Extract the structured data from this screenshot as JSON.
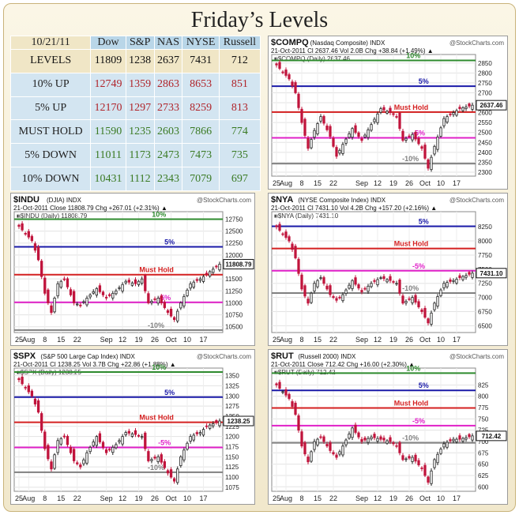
{
  "page_title": "Friday’s Levels",
  "levels_table": {
    "header": [
      "10/21/11",
      "Dow",
      "S&P",
      "NAS",
      "NYSE",
      "Russell"
    ],
    "rows": [
      {
        "label": "LEVELS",
        "values": [
          "11809",
          "1238",
          "2637",
          "7431",
          "712"
        ],
        "color": "#111111"
      },
      {
        "label": "10% UP",
        "values": [
          "12749",
          "1359",
          "2863",
          "8653",
          "851"
        ],
        "color": "#b0242a"
      },
      {
        "label": "5% UP",
        "values": [
          "12170",
          "1297",
          "2733",
          "8259",
          "813"
        ],
        "color": "#b0242a"
      },
      {
        "label": "MUST HOLD",
        "values": [
          "11590",
          "1235",
          "2603",
          "7866",
          "774"
        ],
        "color": "#3a7a23"
      },
      {
        "label": "5% DOWN",
        "values": [
          "11011",
          "1173",
          "2473",
          "7473",
          "735"
        ],
        "color": "#3a7a23"
      },
      {
        "label": "10% DOWN",
        "values": [
          "10431",
          "1112",
          "2343",
          "7079",
          "697"
        ],
        "color": "#3a7a23"
      }
    ]
  },
  "colors": {
    "up_candle": "#222222",
    "down_candle": "#c0143c",
    "line_10pct": "#2e8b2e",
    "line_5pct": "#1a1aa8",
    "line_musthold": "#d42020",
    "line_minus5": "#e020c8",
    "line_minus10": "#808080"
  },
  "chart_data": [
    {
      "type": "candlestick",
      "symbol": "$COMPQ",
      "name": "(Nasdaq Composite) INDX",
      "watermark": "@StockCharts.com",
      "info": "21-Oct-2011   Cl 2637.46  Vol 2.0B  Chg +38.84 (+1.49%) ▲",
      "legend": "■$COMPQ (Daily) 2637.46",
      "last_label": "2637.46",
      "ylim": [
        2280,
        2865
      ],
      "yticks": [
        2300,
        2350,
        2400,
        2450,
        2500,
        2550,
        2600,
        2650,
        2700,
        2750,
        2800,
        2850
      ],
      "xticks": [
        {
          "i": 0,
          "label": "25"
        },
        {
          "i": 3,
          "label": "Aug"
        },
        {
          "i": 8,
          "label": "8"
        },
        {
          "i": 13,
          "label": "15"
        },
        {
          "i": 18,
          "label": "22"
        },
        {
          "i": 27,
          "label": "Sep"
        },
        {
          "i": 32,
          "label": "12"
        },
        {
          "i": 37,
          "label": "19"
        },
        {
          "i": 42,
          "label": "26"
        },
        {
          "i": 47,
          "label": "Oct"
        },
        {
          "i": 52,
          "label": "10"
        },
        {
          "i": 57,
          "label": "17"
        }
      ],
      "n_days": 63,
      "anchors": [
        [
          0,
          2840
        ],
        [
          4,
          2770
        ],
        [
          6,
          2700
        ],
        [
          8,
          2550
        ],
        [
          10,
          2420
        ],
        [
          12,
          2510
        ],
        [
          14,
          2580
        ],
        [
          17,
          2480
        ],
        [
          19,
          2380
        ],
        [
          21,
          2440
        ],
        [
          24,
          2520
        ],
        [
          27,
          2460
        ],
        [
          30,
          2540
        ],
        [
          33,
          2620
        ],
        [
          36,
          2600
        ],
        [
          38,
          2580
        ],
        [
          40,
          2460
        ],
        [
          43,
          2490
        ],
        [
          46,
          2420
        ],
        [
          48,
          2320
        ],
        [
          50,
          2430
        ],
        [
          53,
          2570
        ],
        [
          56,
          2600
        ],
        [
          58,
          2620
        ],
        [
          62,
          2637.46
        ]
      ],
      "levels": [
        {
          "label": "10%",
          "value": 2863,
          "role": "up10"
        },
        {
          "label": "5%",
          "value": 2733,
          "role": "up5"
        },
        {
          "label": "Must Hold",
          "value": 2603,
          "role": "hold"
        },
        {
          "label": "-5%",
          "value": 2473,
          "role": "down5"
        },
        {
          "label": "-10%",
          "value": 2343,
          "role": "down10"
        }
      ]
    },
    {
      "type": "candlestick",
      "symbol": "$INDU",
      "name": "(DJIA) INDX",
      "watermark": "@StockCharts.com",
      "info": "21-Oct-2011        Close 11808.79  Chg +267.01 (+2.31%) ▲",
      "legend": "■$INDU (Daily) 11808.79",
      "last_label": "11808.79",
      "ylim": [
        10380,
        12790
      ],
      "yticks": [
        10500,
        10750,
        11000,
        11250,
        11500,
        11750,
        12000,
        12250,
        12500,
        12750
      ],
      "xticks": [
        {
          "i": 0,
          "label": "25"
        },
        {
          "i": 3,
          "label": "Aug"
        },
        {
          "i": 8,
          "label": "8"
        },
        {
          "i": 13,
          "label": "15"
        },
        {
          "i": 18,
          "label": "22"
        },
        {
          "i": 27,
          "label": "Sep"
        },
        {
          "i": 32,
          "label": "12"
        },
        {
          "i": 37,
          "label": "19"
        },
        {
          "i": 42,
          "label": "26"
        },
        {
          "i": 47,
          "label": "Oct"
        },
        {
          "i": 52,
          "label": "10"
        },
        {
          "i": 57,
          "label": "17"
        }
      ],
      "n_days": 63,
      "anchors": [
        [
          0,
          12600
        ],
        [
          4,
          12300
        ],
        [
          6,
          11900
        ],
        [
          8,
          11200
        ],
        [
          10,
          10800
        ],
        [
          12,
          11400
        ],
        [
          14,
          11500
        ],
        [
          17,
          11000
        ],
        [
          19,
          10950
        ],
        [
          21,
          11100
        ],
        [
          24,
          11300
        ],
        [
          27,
          11100
        ],
        [
          30,
          11250
        ],
        [
          33,
          11450
        ],
        [
          36,
          11400
        ],
        [
          38,
          11500
        ],
        [
          40,
          11000
        ],
        [
          43,
          11100
        ],
        [
          46,
          10800
        ],
        [
          48,
          10650
        ],
        [
          50,
          11000
        ],
        [
          53,
          11400
        ],
        [
          56,
          11500
        ],
        [
          58,
          11600
        ],
        [
          62,
          11808.79
        ]
      ],
      "levels": [
        {
          "label": "10%",
          "value": 12749,
          "role": "up10"
        },
        {
          "label": "5%",
          "value": 12170,
          "role": "up5"
        },
        {
          "label": "Must Hold",
          "value": 11590,
          "role": "hold"
        },
        {
          "label": "-5%",
          "value": 11011,
          "role": "down5"
        },
        {
          "label": "-10%",
          "value": 10431,
          "role": "down10"
        }
      ]
    },
    {
      "type": "candlestick",
      "symbol": "$NYA",
      "name": "(NYSE Composite Index) INDX",
      "watermark": "@StockCharts.com",
      "info": "21-Oct-2011   Cl 7431.10  Vol 4.2B  Chg +157.20 (+2.16%) ▲",
      "legend": "■$NYA (Daily) 7431.10",
      "last_label": "7431.10",
      "ylim": [
        6380,
        8420
      ],
      "yticks": [
        6500,
        6750,
        7000,
        7250,
        7500,
        7750,
        8000,
        8250
      ],
      "xticks": [
        {
          "i": 0,
          "label": "25"
        },
        {
          "i": 3,
          "label": "Aug"
        },
        {
          "i": 8,
          "label": "8"
        },
        {
          "i": 13,
          "label": "15"
        },
        {
          "i": 18,
          "label": "22"
        },
        {
          "i": 27,
          "label": "Sep"
        },
        {
          "i": 32,
          "label": "12"
        },
        {
          "i": 37,
          "label": "19"
        },
        {
          "i": 42,
          "label": "26"
        },
        {
          "i": 47,
          "label": "Oct"
        },
        {
          "i": 52,
          "label": "10"
        },
        {
          "i": 57,
          "label": "17"
        }
      ],
      "n_days": 63,
      "anchors": [
        [
          0,
          8250
        ],
        [
          4,
          8000
        ],
        [
          6,
          7700
        ],
        [
          8,
          7150
        ],
        [
          10,
          6900
        ],
        [
          12,
          7250
        ],
        [
          14,
          7350
        ],
        [
          17,
          7050
        ],
        [
          19,
          6950
        ],
        [
          21,
          7050
        ],
        [
          24,
          7300
        ],
        [
          27,
          7100
        ],
        [
          30,
          7250
        ],
        [
          33,
          7350
        ],
        [
          36,
          7300
        ],
        [
          38,
          7250
        ],
        [
          40,
          6900
        ],
        [
          43,
          7000
        ],
        [
          46,
          6750
        ],
        [
          48,
          6550
        ],
        [
          50,
          6900
        ],
        [
          53,
          7250
        ],
        [
          56,
          7300
        ],
        [
          58,
          7350
        ],
        [
          62,
          7431.1
        ]
      ],
      "levels": [
        {
          "label": "5%",
          "value": 8259,
          "role": "up5"
        },
        {
          "label": "Must Hold",
          "value": 7866,
          "role": "hold"
        },
        {
          "label": "-5%",
          "value": 7473,
          "role": "down5"
        },
        {
          "label": "-10%",
          "value": 7079,
          "role": "down10"
        }
      ]
    },
    {
      "type": "candlestick",
      "symbol": "$SPX",
      "name": "(S&P 500 Large Cap Index) INDX",
      "watermark": "@StockCharts.com",
      "info": "21-Oct-2011   Cl 1238.25  Vol 3.7B  Chg +22.86 (+1.88%) ▲",
      "legend": "■$SPX (Daily) 1238.25",
      "last_label": "1238.25",
      "ylim": [
        1065,
        1355
      ],
      "yticks": [
        1075,
        1100,
        1125,
        1150,
        1175,
        1200,
        1225,
        1250,
        1275,
        1300,
        1325,
        1350
      ],
      "xticks": [
        {
          "i": 0,
          "label": "25"
        },
        {
          "i": 3,
          "label": "Aug"
        },
        {
          "i": 8,
          "label": "8"
        },
        {
          "i": 13,
          "label": "15"
        },
        {
          "i": 18,
          "label": "22"
        },
        {
          "i": 27,
          "label": "Sep"
        },
        {
          "i": 32,
          "label": "12"
        },
        {
          "i": 37,
          "label": "19"
        },
        {
          "i": 42,
          "label": "26"
        },
        {
          "i": 47,
          "label": "Oct"
        },
        {
          "i": 52,
          "label": "10"
        },
        {
          "i": 57,
          "label": "17"
        }
      ],
      "n_days": 63,
      "anchors": [
        [
          0,
          1340
        ],
        [
          4,
          1300
        ],
        [
          6,
          1260
        ],
        [
          8,
          1170
        ],
        [
          10,
          1120
        ],
        [
          12,
          1190
        ],
        [
          14,
          1200
        ],
        [
          17,
          1140
        ],
        [
          19,
          1125
        ],
        [
          21,
          1160
        ],
        [
          24,
          1200
        ],
        [
          27,
          1160
        ],
        [
          30,
          1180
        ],
        [
          33,
          1210
        ],
        [
          36,
          1205
        ],
        [
          38,
          1200
        ],
        [
          40,
          1140
        ],
        [
          43,
          1150
        ],
        [
          46,
          1110
        ],
        [
          48,
          1090
        ],
        [
          50,
          1150
        ],
        [
          53,
          1200
        ],
        [
          56,
          1210
        ],
        [
          58,
          1225
        ],
        [
          62,
          1238.25
        ]
      ],
      "levels": [
        {
          "label": "10%",
          "value": 1359,
          "role": "up10"
        },
        {
          "label": "5%",
          "value": 1297,
          "role": "up5"
        },
        {
          "label": "Must Hold",
          "value": 1235,
          "role": "hold"
        },
        {
          "label": "-5%",
          "value": 1173,
          "role": "down5"
        },
        {
          "label": "-10%",
          "value": 1112,
          "role": "down10"
        }
      ]
    },
    {
      "type": "candlestick",
      "symbol": "$RUT",
      "name": "(Russell 2000) INDX",
      "watermark": "@StockCharts.com",
      "info": "21-Oct-2011        Close 712.42  Chg +16.00 (+2.30%) ▲",
      "legend": "■$RUT (Daily) 712.42",
      "last_label": "712.42",
      "ylim": [
        590,
        850
      ],
      "yticks": [
        600,
        625,
        650,
        675,
        700,
        725,
        750,
        775,
        800,
        825
      ],
      "xticks": [
        {
          "i": 0,
          "label": "25"
        },
        {
          "i": 3,
          "label": "Aug"
        },
        {
          "i": 8,
          "label": "8"
        },
        {
          "i": 13,
          "label": "15"
        },
        {
          "i": 18,
          "label": "22"
        },
        {
          "i": 27,
          "label": "Sep"
        },
        {
          "i": 32,
          "label": "12"
        },
        {
          "i": 37,
          "label": "19"
        },
        {
          "i": 42,
          "label": "26"
        },
        {
          "i": 47,
          "label": "Oct"
        },
        {
          "i": 52,
          "label": "10"
        },
        {
          "i": 57,
          "label": "17"
        }
      ],
      "n_days": 63,
      "anchors": [
        [
          0,
          825
        ],
        [
          4,
          795
        ],
        [
          6,
          760
        ],
        [
          8,
          690
        ],
        [
          10,
          655
        ],
        [
          12,
          700
        ],
        [
          14,
          710
        ],
        [
          17,
          680
        ],
        [
          19,
          665
        ],
        [
          21,
          690
        ],
        [
          24,
          730
        ],
        [
          27,
          700
        ],
        [
          30,
          710
        ],
        [
          33,
          705
        ],
        [
          36,
          700
        ],
        [
          38,
          690
        ],
        [
          40,
          660
        ],
        [
          43,
          665
        ],
        [
          46,
          640
        ],
        [
          48,
          610
        ],
        [
          50,
          660
        ],
        [
          53,
          695
        ],
        [
          56,
          705
        ],
        [
          58,
          705
        ],
        [
          62,
          712.42
        ]
      ],
      "levels": [
        {
          "label": "10%",
          "value": 851,
          "role": "up10"
        },
        {
          "label": "5%",
          "value": 813,
          "role": "up5"
        },
        {
          "label": "Must Hold",
          "value": 774,
          "role": "hold"
        },
        {
          "label": "-5%",
          "value": 735,
          "role": "down5"
        },
        {
          "label": "-10%",
          "value": 697,
          "role": "down10"
        }
      ]
    }
  ]
}
